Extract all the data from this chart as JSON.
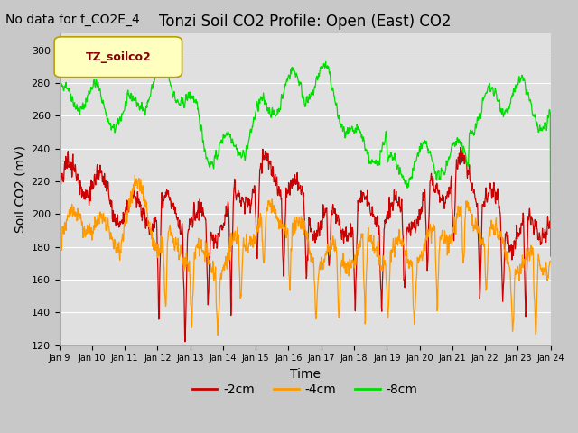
{
  "title": "Tonzi Soil CO2 Profile: Open (East) CO2",
  "subtitle": "No data for f_CO2E_4",
  "ylabel": "Soil CO2 (mV)",
  "xlabel": "Time",
  "ylim": [
    120,
    310
  ],
  "yticks": [
    120,
    140,
    160,
    180,
    200,
    220,
    240,
    260,
    280,
    300
  ],
  "xtick_labels": [
    "Jan 9",
    "Jan 10",
    "Jan 11",
    "Jan 12",
    "Jan 13",
    "Jan 14",
    "Jan 15",
    "Jan 16",
    "Jan 17",
    "Jan 18",
    "Jan 19",
    "Jan 20",
    "Jan 21",
    "Jan 22",
    "Jan 23",
    "Jan 24"
  ],
  "legend_label": "TZ_soilco2",
  "series_labels": [
    "-2cm",
    "-4cm",
    "-8cm"
  ],
  "series_colors": [
    "#cc0000",
    "#ff9900",
    "#00dd00"
  ],
  "fig_bg_color": "#c8c8c8",
  "plot_bg_color": "#e0e0e0",
  "grid_color": "#ffffff",
  "title_fontsize": 12,
  "subtitle_fontsize": 10,
  "axis_fontsize": 10,
  "tick_fontsize": 8,
  "legend_box_facecolor": "#ffffc0",
  "legend_box_edgecolor": "#b8a000",
  "legend_text_color": "#880000"
}
